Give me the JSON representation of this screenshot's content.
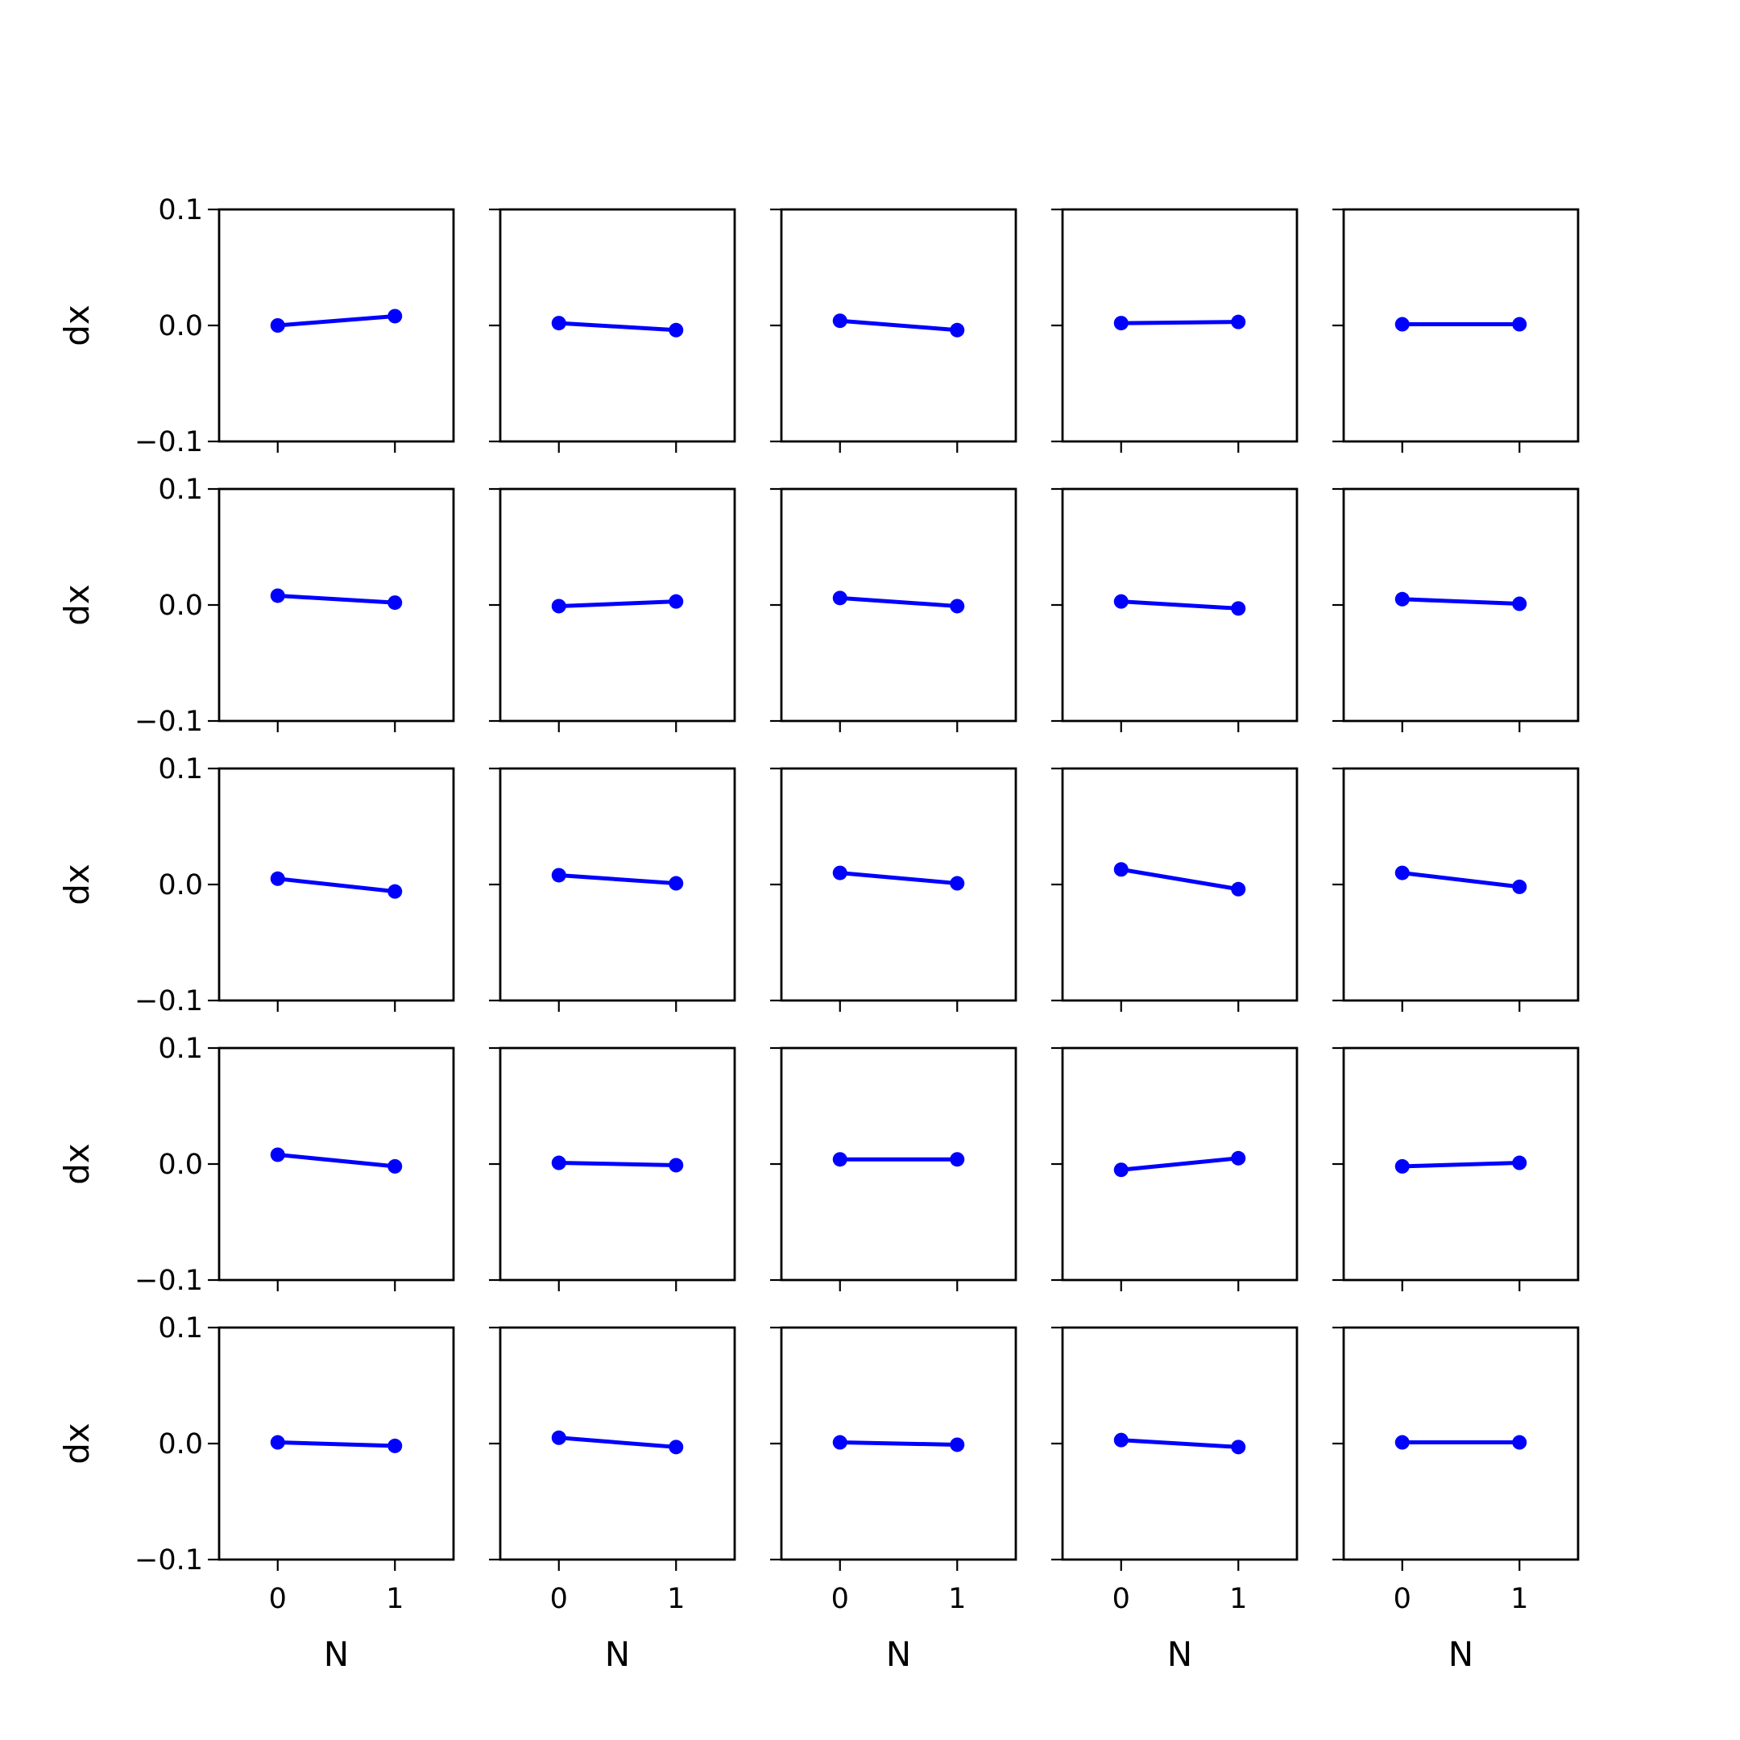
{
  "chart_data": {
    "type": "line",
    "layout": {
      "rows": 5,
      "cols": 5
    },
    "series_color": "#0000ff",
    "xlabel": "N",
    "ylabel": "dx",
    "x": [
      0,
      1
    ],
    "xlim": [
      -0.5,
      1.5
    ],
    "ylim": [
      -0.1,
      0.1
    ],
    "xticks": [
      0,
      1
    ],
    "xtick_labels": [
      "0",
      "1"
    ],
    "yticks": [
      -0.1,
      0.0,
      0.1
    ],
    "ytick_labels": [
      "−0.1",
      "0.0",
      "0.1"
    ],
    "grid": false,
    "legend": "none",
    "panels": [
      [
        [
          0.0,
          0.008
        ],
        [
          0.002,
          -0.004
        ],
        [
          0.004,
          -0.004
        ],
        [
          0.002,
          0.003
        ],
        [
          0.001,
          0.001
        ]
      ],
      [
        [
          0.008,
          0.002
        ],
        [
          -0.001,
          0.003
        ],
        [
          0.006,
          -0.001
        ],
        [
          0.003,
          -0.003
        ],
        [
          0.005,
          0.001
        ]
      ],
      [
        [
          0.005,
          -0.006
        ],
        [
          0.008,
          0.001
        ],
        [
          0.01,
          0.001
        ],
        [
          0.013,
          -0.004
        ],
        [
          0.01,
          -0.002
        ]
      ],
      [
        [
          0.008,
          -0.002
        ],
        [
          0.001,
          -0.001
        ],
        [
          0.004,
          0.004
        ],
        [
          -0.005,
          0.005
        ],
        [
          -0.002,
          0.001
        ]
      ],
      [
        [
          0.001,
          -0.002
        ],
        [
          0.005,
          -0.003
        ],
        [
          0.001,
          -0.001
        ],
        [
          0.003,
          -0.003
        ],
        [
          0.001,
          0.001
        ]
      ]
    ]
  }
}
